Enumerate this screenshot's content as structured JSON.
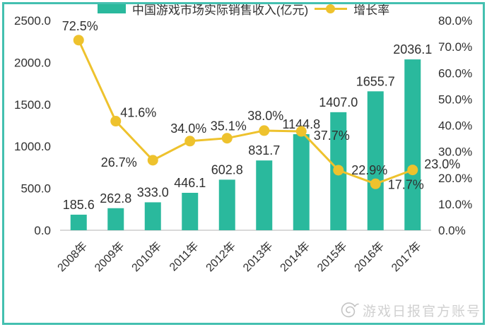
{
  "frame": {
    "border_color": "#44C0B0",
    "background": "#FFFFFF"
  },
  "chart_data": {
    "type": "bar",
    "subtype": "combo-bar-line-dual-axis",
    "categories": [
      "2008年",
      "2009年",
      "2010年",
      "2011年",
      "2012年",
      "2013年",
      "2014年",
      "2015年",
      "2016年",
      "2017年"
    ],
    "series": [
      {
        "name": "中国游戏市场实际销售收入(亿元)",
        "type": "bar",
        "axis": "left",
        "color": "#2AB99D",
        "values": [
          185.6,
          262.8,
          333.0,
          446.1,
          602.8,
          831.7,
          1144.8,
          1407.0,
          1655.7,
          2036.1
        ],
        "labels": [
          "185.6",
          "262.8",
          "333.0",
          "446.1",
          "602.8",
          "831.7",
          "1144.8",
          "1407.0",
          "1655.7",
          "2036.1"
        ]
      },
      {
        "name": "增长率",
        "type": "line",
        "axis": "right",
        "color": "#EEC22D",
        "values_percent": [
          72.5,
          41.6,
          26.7,
          34.0,
          35.1,
          38.0,
          37.7,
          22.9,
          17.7,
          23.0
        ],
        "labels": [
          "72.5%",
          "41.6%",
          "26.7%",
          "34.0%",
          "35.1%",
          "38.0%",
          "37.7%",
          "22.9%",
          "17.7%",
          "23.0%"
        ],
        "label_offsets": [
          [
            2,
            -14
          ],
          [
            32,
            -6
          ],
          [
            -48,
            9
          ],
          [
            -2,
            -12
          ],
          [
            2,
            -11
          ],
          [
            2,
            -15
          ],
          [
            43,
            12
          ],
          [
            44,
            6
          ],
          [
            43,
            7
          ],
          [
            42,
            -2
          ]
        ]
      }
    ],
    "left_axis": {
      "min": 0,
      "max": 2500,
      "tick_values": [
        0,
        500,
        1000,
        1500,
        2000,
        2500
      ],
      "tick_labels": [
        "0.0",
        "500.0",
        "1000.0",
        "1500.0",
        "2000.0",
        "2500.0"
      ]
    },
    "right_axis": {
      "min": 0,
      "max": 80,
      "tick_values": [
        0,
        10,
        20,
        30,
        40,
        50,
        60,
        70,
        80
      ],
      "tick_labels": [
        "0.0%",
        "10.0%",
        "20.0%",
        "30.0%",
        "40.0%",
        "50.0%",
        "60.0%",
        "70.0%",
        "80.0%"
      ]
    },
    "title": "",
    "xlabel": "",
    "ylabel": "",
    "grid": false,
    "legend_position": "bottom",
    "axis_line_color": "#D9D9D9",
    "text_color": "#303030"
  },
  "watermark": {
    "text": "游戏日报官方账号",
    "icon": "spiral-logo-icon",
    "color": "#CBCBCB"
  }
}
